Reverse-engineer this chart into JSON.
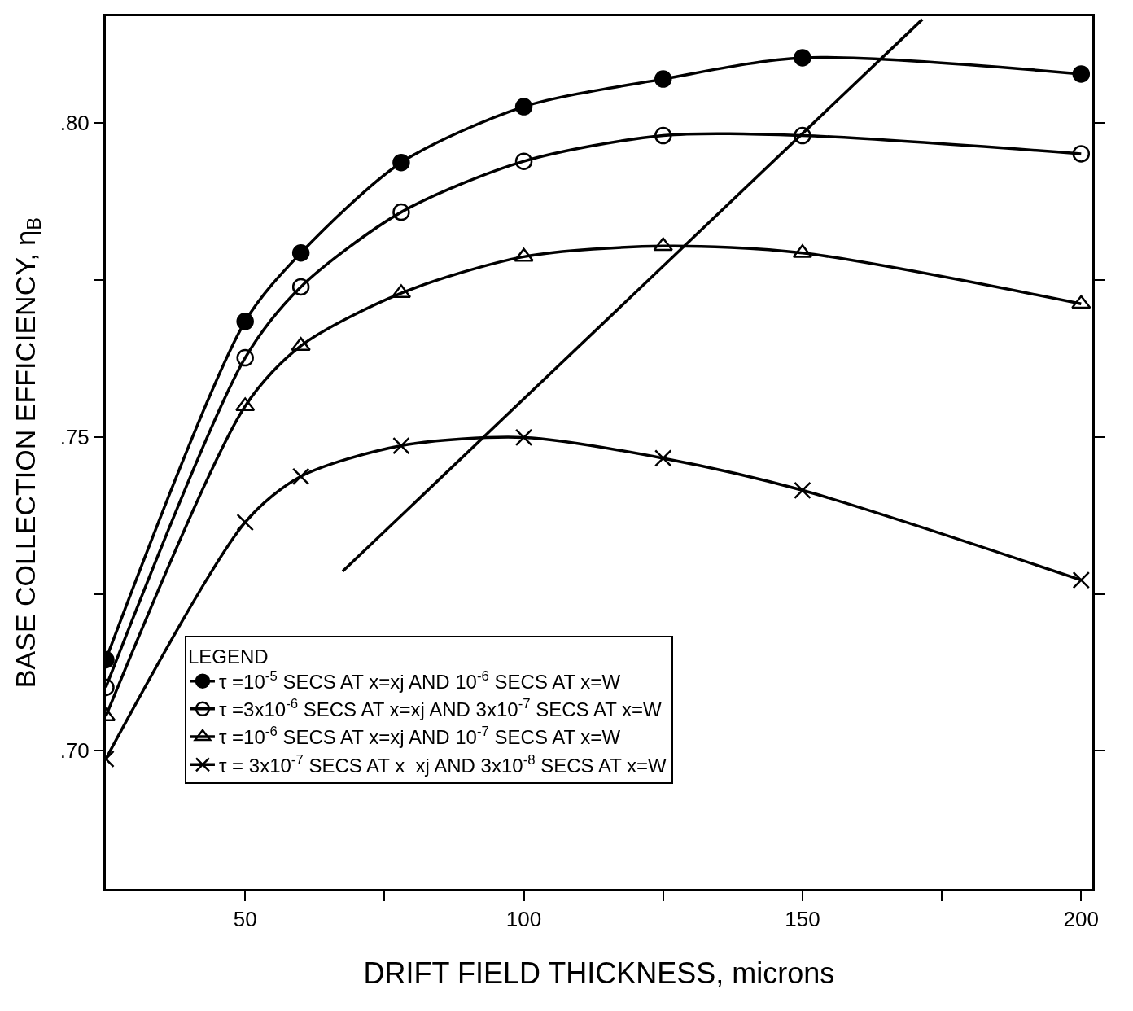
{
  "chart_data": {
    "type": "line",
    "xlabel": "DRIFT FIELD THICKNESS, microns",
    "ylabel": "BASE COLLECTION EFFICIENCY, η$_{B}$",
    "legend_title": "LEGEND",
    "x": [
      25,
      50,
      60,
      78,
      100,
      125,
      150,
      200
    ],
    "series": [
      {
        "name": "τ =10$^{-5}$ SECS AT x=xj AND 10$^{-6}$ SECS AT x=W",
        "color": "#000000",
        "marker": "circle",
        "values": [
          0.7145,
          0.7684,
          0.7793,
          0.7937,
          0.8026,
          0.807,
          0.8104,
          0.8078
        ]
      },
      {
        "name": "τ =3x10$^{-6}$ SECS AT x=xj AND 3x10$^{-7}$ SECS AT x=W",
        "color": "#000000",
        "marker": "circle-open",
        "values": [
          0.7101,
          0.7626,
          0.7739,
          0.7858,
          0.7939,
          0.798,
          0.798,
          0.7951
        ]
      },
      {
        "name": "τ =10$^{-6}$ SECS AT x=xj AND 10$^{-7}$ SECS AT x=W",
        "color": "#000000",
        "marker": "triangle-open",
        "values": [
          0.7055,
          0.7549,
          0.7645,
          0.7729,
          0.7787,
          0.7804,
          0.7793,
          0.7712
        ]
      },
      {
        "name": "τ = 3x10$^{-7}$ SECS AT x  xj AND 3x10$^{-8}$ SECS AT x=W",
        "color": "#000000",
        "marker": "cross",
        "values": [
          0.6987,
          0.7364,
          0.7437,
          0.7486,
          0.7499,
          0.7466,
          0.7415,
          0.7272
        ]
      },
      {
        "color": "#000000",
        "marker": "none",
        "x": [
          67.5,
          171.5
        ],
        "values": [
          0.7286,
          0.8165
        ]
      }
    ],
    "xlim": [
      25,
      202
    ],
    "ylim": [
      0.678,
      0.817
    ],
    "xticks": [
      50,
      {
        "value": 75,
        "label": null
      },
      100,
      {
        "value": 125,
        "label": null
      },
      150,
      {
        "value": 175,
        "label": null
      },
      200
    ],
    "yticks": [
      {
        "value": 0.7,
        "label": ".70"
      },
      {
        "value": 0.725,
        "label": null
      },
      {
        "value": 0.75,
        "label": ".75"
      },
      {
        "value": 0.775,
        "label": null
      },
      {
        "value": 0.8,
        "label": ".80"
      }
    ],
    "legend": "bottom left",
    "line_style": "solid"
  }
}
